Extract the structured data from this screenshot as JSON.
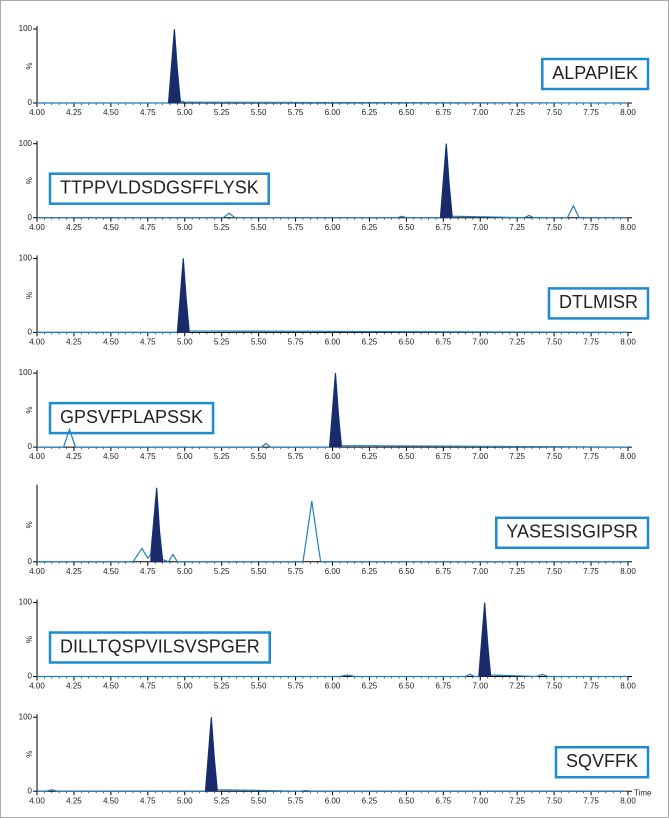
{
  "chart_data": [
    {
      "type": "line",
      "label": "ALPAPIEK",
      "label_corner": "right",
      "y_label": "%",
      "xlim": [
        4,
        8
      ],
      "ylim": [
        0,
        100
      ],
      "yticks": [
        0,
        100
      ],
      "xticks": [
        {
          "value": 4,
          "label": "4.00"
        },
        {
          "value": 4.25,
          "label": "4.25"
        },
        {
          "value": 4.5,
          "label": "4.50"
        },
        {
          "value": 4.75,
          "label": "4.75"
        },
        {
          "value": 5,
          "label": "5.00"
        },
        {
          "value": 5.25,
          "label": "5.25"
        },
        {
          "value": 5.5,
          "label": "5.50"
        },
        {
          "value": 5.75,
          "label": "5.75"
        },
        {
          "value": 6,
          "label": "6.00"
        },
        {
          "value": 6.25,
          "label": "6.25"
        },
        {
          "value": 6.5,
          "label": "6.50"
        },
        {
          "value": 6.75,
          "label": "6.75"
        },
        {
          "value": 7,
          "label": "7.00"
        },
        {
          "value": 7.25,
          "label": "7.25"
        },
        {
          "value": 7.5,
          "label": "7.50"
        },
        {
          "value": 7.75,
          "label": "7.75"
        },
        {
          "value": 8,
          "label": "8.00"
        }
      ],
      "x": [
        4.0,
        4.89,
        4.91,
        4.93,
        4.95,
        4.97,
        5.0,
        8.0
      ],
      "series": [
        {
          "color": "#1f7fc0",
          "values": [
            0,
            0,
            50,
            100,
            45,
            3,
            1,
            0
          ]
        },
        {
          "color": "#1b2a6b",
          "fill": true,
          "values": [
            null,
            0,
            50,
            100,
            45,
            3,
            null,
            null
          ]
        }
      ]
    },
    {
      "type": "line",
      "label": "TTPPVLDSDGSFFLYSK",
      "label_corner": "left",
      "y_label": "%",
      "xlim": [
        4,
        8
      ],
      "ylim": [
        0,
        100
      ],
      "yticks": [
        0,
        100
      ],
      "xticks": [
        {
          "value": 4,
          "label": "4.00"
        },
        {
          "value": 4.25,
          "label": "4.25"
        },
        {
          "value": 4.5,
          "label": "4.50"
        },
        {
          "value": 4.75,
          "label": "4.75"
        },
        {
          "value": 5,
          "label": "5.00"
        },
        {
          "value": 5.25,
          "label": "5.25"
        },
        {
          "value": 5.5,
          "label": "5.50"
        },
        {
          "value": 5.75,
          "label": "5.75"
        },
        {
          "value": 6,
          "label": "6.00"
        },
        {
          "value": 6.25,
          "label": "6.25"
        },
        {
          "value": 6.5,
          "label": "6.50"
        },
        {
          "value": 6.75,
          "label": "6.75"
        },
        {
          "value": 7,
          "label": "7.00"
        },
        {
          "value": 7.25,
          "label": "7.25"
        },
        {
          "value": 7.5,
          "label": "7.50"
        },
        {
          "value": 7.75,
          "label": "7.75"
        },
        {
          "value": 8,
          "label": "8.00"
        }
      ],
      "x": [
        4.0,
        5.26,
        5.3,
        5.34,
        6.44,
        6.47,
        6.5,
        6.73,
        6.75,
        6.77,
        6.79,
        6.81,
        7.3,
        7.33,
        7.36,
        7.59,
        7.63,
        7.67,
        8.0
      ],
      "series": [
        {
          "color": "#1f7fc0",
          "values": [
            0,
            0,
            6,
            0,
            0,
            2,
            0,
            0,
            50,
            100,
            45,
            2,
            0,
            3,
            0,
            0,
            16,
            0,
            0
          ]
        },
        {
          "color": "#1b2a6b",
          "fill": true,
          "values": [
            null,
            null,
            null,
            null,
            null,
            null,
            null,
            0,
            50,
            100,
            45,
            2,
            null,
            null,
            null,
            null,
            null,
            null,
            null
          ]
        }
      ]
    },
    {
      "type": "line",
      "label": "DTLMISR",
      "label_corner": "right",
      "y_label": "%",
      "xlim": [
        4,
        8
      ],
      "ylim": [
        0,
        100
      ],
      "yticks": [
        0,
        100
      ],
      "xticks": [
        {
          "value": 4,
          "label": "4.00"
        },
        {
          "value": 4.25,
          "label": "4.25"
        },
        {
          "value": 4.5,
          "label": "4.50"
        },
        {
          "value": 4.75,
          "label": "4.75"
        },
        {
          "value": 5,
          "label": "5.00"
        },
        {
          "value": 5.25,
          "label": "5.25"
        },
        {
          "value": 5.5,
          "label": "5.50"
        },
        {
          "value": 5.75,
          "label": "5.75"
        },
        {
          "value": 6,
          "label": "6.00"
        },
        {
          "value": 6.25,
          "label": "6.25"
        },
        {
          "value": 6.5,
          "label": "6.50"
        },
        {
          "value": 6.75,
          "label": "6.75"
        },
        {
          "value": 7,
          "label": "7.00"
        },
        {
          "value": 7.25,
          "label": "7.25"
        },
        {
          "value": 7.5,
          "label": "7.50"
        },
        {
          "value": 7.75,
          "label": "7.75"
        },
        {
          "value": 8,
          "label": "8.00"
        }
      ],
      "x": [
        4.0,
        4.95,
        4.97,
        4.99,
        5.01,
        5.03,
        8.0
      ],
      "series": [
        {
          "color": "#1f7fc0",
          "values": [
            0,
            0,
            50,
            100,
            45,
            2,
            0
          ]
        },
        {
          "color": "#1b2a6b",
          "fill": true,
          "values": [
            null,
            0,
            50,
            100,
            45,
            2,
            null
          ]
        }
      ]
    },
    {
      "type": "line",
      "label": "GPSVFPLAPSSK",
      "label_corner": "left",
      "y_label": "%",
      "xlim": [
        4,
        8
      ],
      "ylim": [
        0,
        100
      ],
      "yticks": [
        0,
        100
      ],
      "xticks": [
        {
          "value": 4,
          "label": "4.00"
        },
        {
          "value": 4.25,
          "label": "4.25"
        },
        {
          "value": 4.5,
          "label": "4.50"
        },
        {
          "value": 4.75,
          "label": "4.75"
        },
        {
          "value": 5,
          "label": "5.00"
        },
        {
          "value": 5.25,
          "label": "5.25"
        },
        {
          "value": 5.5,
          "label": "5.50"
        },
        {
          "value": 5.75,
          "label": "5.75"
        },
        {
          "value": 6,
          "label": "6.00"
        },
        {
          "value": 6.25,
          "label": "6.25"
        },
        {
          "value": 6.5,
          "label": "6.50"
        },
        {
          "value": 6.75,
          "label": "6.75"
        },
        {
          "value": 7,
          "label": "7.00"
        },
        {
          "value": 7.25,
          "label": "7.25"
        },
        {
          "value": 7.5,
          "label": "7.50"
        },
        {
          "value": 7.75,
          "label": "7.75"
        },
        {
          "value": 8,
          "label": "8.00"
        }
      ],
      "x": [
        4.0,
        4.18,
        4.22,
        4.26,
        5.52,
        5.55,
        5.58,
        5.98,
        6.0,
        6.02,
        6.04,
        6.06,
        8.0
      ],
      "series": [
        {
          "color": "#1f7fc0",
          "values": [
            0,
            0,
            24,
            0,
            0,
            5,
            0,
            0,
            50,
            100,
            45,
            2,
            0
          ]
        },
        {
          "color": "#1b2a6b",
          "fill": true,
          "values": [
            null,
            null,
            null,
            null,
            null,
            null,
            null,
            0,
            50,
            100,
            45,
            2,
            null
          ]
        }
      ]
    },
    {
      "type": "line",
      "label": "YASESISGIPSR",
      "label_corner": "right",
      "y_label": "%",
      "xlim": [
        4,
        8
      ],
      "ylim": [
        0,
        100
      ],
      "yticks": [
        0
      ],
      "xticks": [
        {
          "value": 4,
          "label": "4.00"
        },
        {
          "value": 4.25,
          "label": "4.25"
        },
        {
          "value": 4.5,
          "label": "4.50"
        },
        {
          "value": 4.75,
          "label": "4.75"
        },
        {
          "value": 5,
          "label": "5.00"
        },
        {
          "value": 5.25,
          "label": "5.25"
        },
        {
          "value": 5.5,
          "label": "5.50"
        },
        {
          "value": 5.75,
          "label": "5.75"
        },
        {
          "value": 6,
          "label": "6.00"
        },
        {
          "value": 6.25,
          "label": "6.25"
        },
        {
          "value": 6.5,
          "label": "6.50"
        },
        {
          "value": 6.75,
          "label": "6.75"
        },
        {
          "value": 7,
          "label": "7.00"
        },
        {
          "value": 7.25,
          "label": "7.25"
        },
        {
          "value": 7.5,
          "label": "7.50"
        },
        {
          "value": 7.75,
          "label": "7.75"
        },
        {
          "value": 8,
          "label": "8.00"
        }
      ],
      "x": [
        4.0,
        4.65,
        4.71,
        4.75,
        4.77,
        4.79,
        4.81,
        4.83,
        4.85,
        4.89,
        4.92,
        4.95,
        5.8,
        5.83,
        5.86,
        5.89,
        5.92,
        8.0
      ],
      "series": [
        {
          "color": "#1f7fc0",
          "values": [
            0,
            0,
            18,
            5,
            10,
            55,
            100,
            40,
            3,
            0,
            10,
            0,
            0,
            40,
            82,
            40,
            0,
            0
          ]
        },
        {
          "color": "#1b2a6b",
          "fill": true,
          "values": [
            null,
            null,
            null,
            null,
            10,
            55,
            100,
            40,
            3,
            null,
            null,
            null,
            null,
            null,
            null,
            null,
            null,
            null
          ]
        }
      ]
    },
    {
      "type": "line",
      "label": "DILLTQSPVILSVSPGER",
      "label_corner": "left",
      "y_label": "%",
      "xlim": [
        4,
        8
      ],
      "ylim": [
        0,
        100
      ],
      "yticks": [
        0,
        100
      ],
      "xticks": [
        {
          "value": 4,
          "label": "4.00"
        },
        {
          "value": 4.25,
          "label": "4.25"
        },
        {
          "value": 4.5,
          "label": "4.50"
        },
        {
          "value": 4.75,
          "label": "4.75"
        },
        {
          "value": 5,
          "label": "5.00"
        },
        {
          "value": 5.25,
          "label": "5.25"
        },
        {
          "value": 5.5,
          "label": "5.50"
        },
        {
          "value": 5.75,
          "label": "5.75"
        },
        {
          "value": 6,
          "label": "6.00"
        },
        {
          "value": 6.25,
          "label": "6.25"
        },
        {
          "value": 6.5,
          "label": "6.50"
        },
        {
          "value": 6.75,
          "label": "6.75"
        },
        {
          "value": 7,
          "label": "7.00"
        },
        {
          "value": 7.25,
          "label": "7.25"
        },
        {
          "value": 7.5,
          "label": "7.50"
        },
        {
          "value": 7.75,
          "label": "7.75"
        },
        {
          "value": 8,
          "label": "8.00"
        }
      ],
      "x": [
        4.0,
        6.05,
        6.1,
        6.15,
        6.9,
        6.93,
        6.96,
        6.99,
        7.01,
        7.03,
        7.05,
        7.07,
        7.38,
        7.42,
        7.46,
        8.0
      ],
      "series": [
        {
          "color": "#1f7fc0",
          "values": [
            0,
            0,
            2,
            0,
            0,
            3,
            0,
            0,
            50,
            100,
            45,
            2,
            0,
            3,
            0,
            0
          ]
        },
        {
          "color": "#1b2a6b",
          "fill": true,
          "values": [
            null,
            null,
            null,
            null,
            null,
            null,
            null,
            0,
            50,
            100,
            45,
            2,
            null,
            null,
            null,
            null
          ]
        }
      ]
    },
    {
      "type": "line",
      "label": "SQVFFK",
      "label_corner": "right",
      "y_label": "%",
      "x_label": "Time",
      "xlim": [
        4,
        8
      ],
      "ylim": [
        0,
        100
      ],
      "yticks": [
        0,
        100
      ],
      "xticks": [
        {
          "value": 4,
          "label": "4.00"
        },
        {
          "value": 4.25,
          "label": "4.25"
        },
        {
          "value": 4.5,
          "label": "4.50"
        },
        {
          "value": 4.75,
          "label": "4.75"
        },
        {
          "value": 5,
          "label": "5.00"
        },
        {
          "value": 5.25,
          "label": "5.25"
        },
        {
          "value": 5.5,
          "label": "5.50"
        },
        {
          "value": 5.75,
          "label": "5.75"
        },
        {
          "value": 6,
          "label": "6.00"
        },
        {
          "value": 6.25,
          "label": "6.25"
        },
        {
          "value": 6.5,
          "label": "6.50"
        },
        {
          "value": 6.75,
          "label": "6.75"
        },
        {
          "value": 7,
          "label": "7.00"
        },
        {
          "value": 7.25,
          "label": "7.25"
        },
        {
          "value": 7.5,
          "label": "7.50"
        },
        {
          "value": 7.75,
          "label": "7.75"
        },
        {
          "value": 8,
          "label": "8.00"
        }
      ],
      "x": [
        4.0,
        4.06,
        4.1,
        4.14,
        5.14,
        5.16,
        5.18,
        5.2,
        5.22,
        5.78,
        5.82,
        5.86,
        8.0
      ],
      "series": [
        {
          "color": "#1f7fc0",
          "values": [
            0,
            0,
            2,
            0,
            0,
            50,
            100,
            45,
            2,
            0,
            1,
            0,
            0
          ]
        },
        {
          "color": "#1b2a6b",
          "fill": true,
          "values": [
            null,
            null,
            null,
            null,
            0,
            50,
            100,
            45,
            2,
            null,
            null,
            null,
            null
          ]
        }
      ]
    }
  ]
}
